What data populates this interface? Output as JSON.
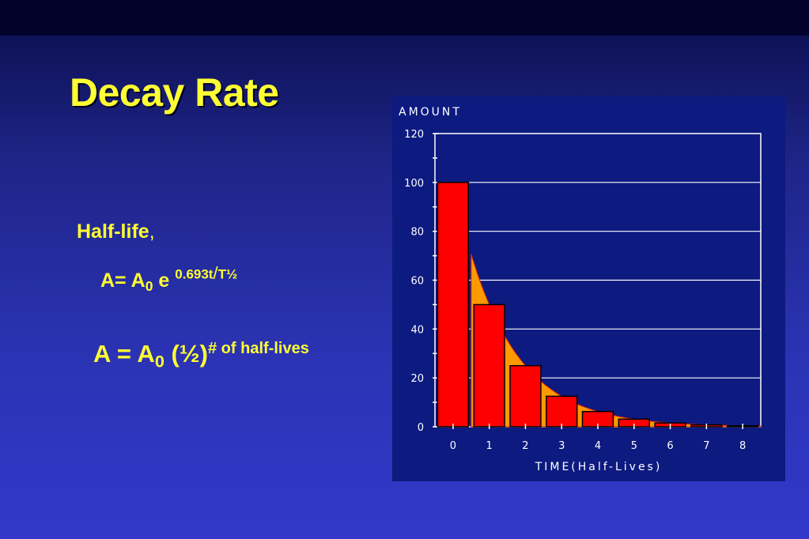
{
  "slide": {
    "title": "Decay Rate",
    "half_life_label": "Half-life",
    "half_life_comma": ",",
    "formula1": {
      "lhs": "A= A",
      "sub": "0",
      "e": " e ",
      "exp_a": "0.693t",
      "exp_slash": "/",
      "exp_b": "T½"
    },
    "formula2": {
      "lhs": "A = A",
      "sub": "0",
      "base": " (½)",
      "exp": "# of half-lives"
    }
  },
  "colors": {
    "text": "#ffff33",
    "panel": "#0d1a80",
    "bar": "#ff0000",
    "curve_fill": "#ff9900",
    "curve_edge": "#dd2200"
  },
  "chart_data": {
    "type": "bar",
    "ylabel": "AMOUNT",
    "xlabel": "TIME(Half-Lives)",
    "categories": [
      "0",
      "1",
      "2",
      "3",
      "4",
      "5",
      "6",
      "7",
      "8"
    ],
    "values": [
      100,
      50,
      25,
      12.5,
      6.25,
      3.13,
      1.56,
      0.78,
      0.39
    ],
    "ylim": [
      0,
      120
    ],
    "yticks": [
      0,
      20,
      40,
      60,
      80,
      100,
      120
    ],
    "grid": true,
    "curve": {
      "type": "area",
      "function": "100 * (1/2)^t",
      "domain": [
        0.5,
        8.5
      ]
    }
  }
}
